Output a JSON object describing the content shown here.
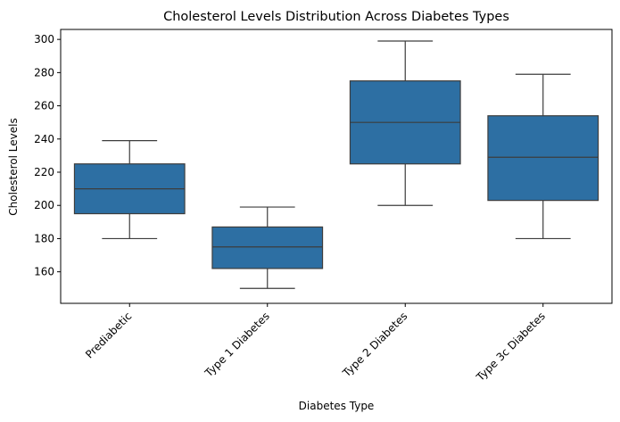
{
  "chart_data": {
    "type": "box",
    "title": "Cholesterol Levels Distribution Across Diabetes Types",
    "xlabel": "Diabetes Type",
    "ylabel": "Cholesterol Levels",
    "ylim": [
      141,
      306
    ],
    "yticks": [
      160,
      180,
      200,
      220,
      240,
      260,
      280,
      300
    ],
    "grid": false,
    "legend": "none",
    "box_color": "#2d6fa3",
    "line_color": "#3d3d3d",
    "categories": [
      "Prediabetic",
      "Type 1 Diabetes",
      "Type 2 Diabetes",
      "Type 3c Diabetes"
    ],
    "boxes": [
      {
        "category": "Prediabetic",
        "whisker_low": 180,
        "q1": 195,
        "median": 210,
        "q3": 225,
        "whisker_high": 239
      },
      {
        "category": "Type 1 Diabetes",
        "whisker_low": 150,
        "q1": 162,
        "median": 175,
        "q3": 187,
        "whisker_high": 199
      },
      {
        "category": "Type 2 Diabetes",
        "whisker_low": 200,
        "q1": 225,
        "median": 250,
        "q3": 275,
        "whisker_high": 299
      },
      {
        "category": "Type 3c Diabetes",
        "whisker_low": 180,
        "q1": 203,
        "median": 229,
        "q3": 254,
        "whisker_high": 279
      }
    ]
  }
}
